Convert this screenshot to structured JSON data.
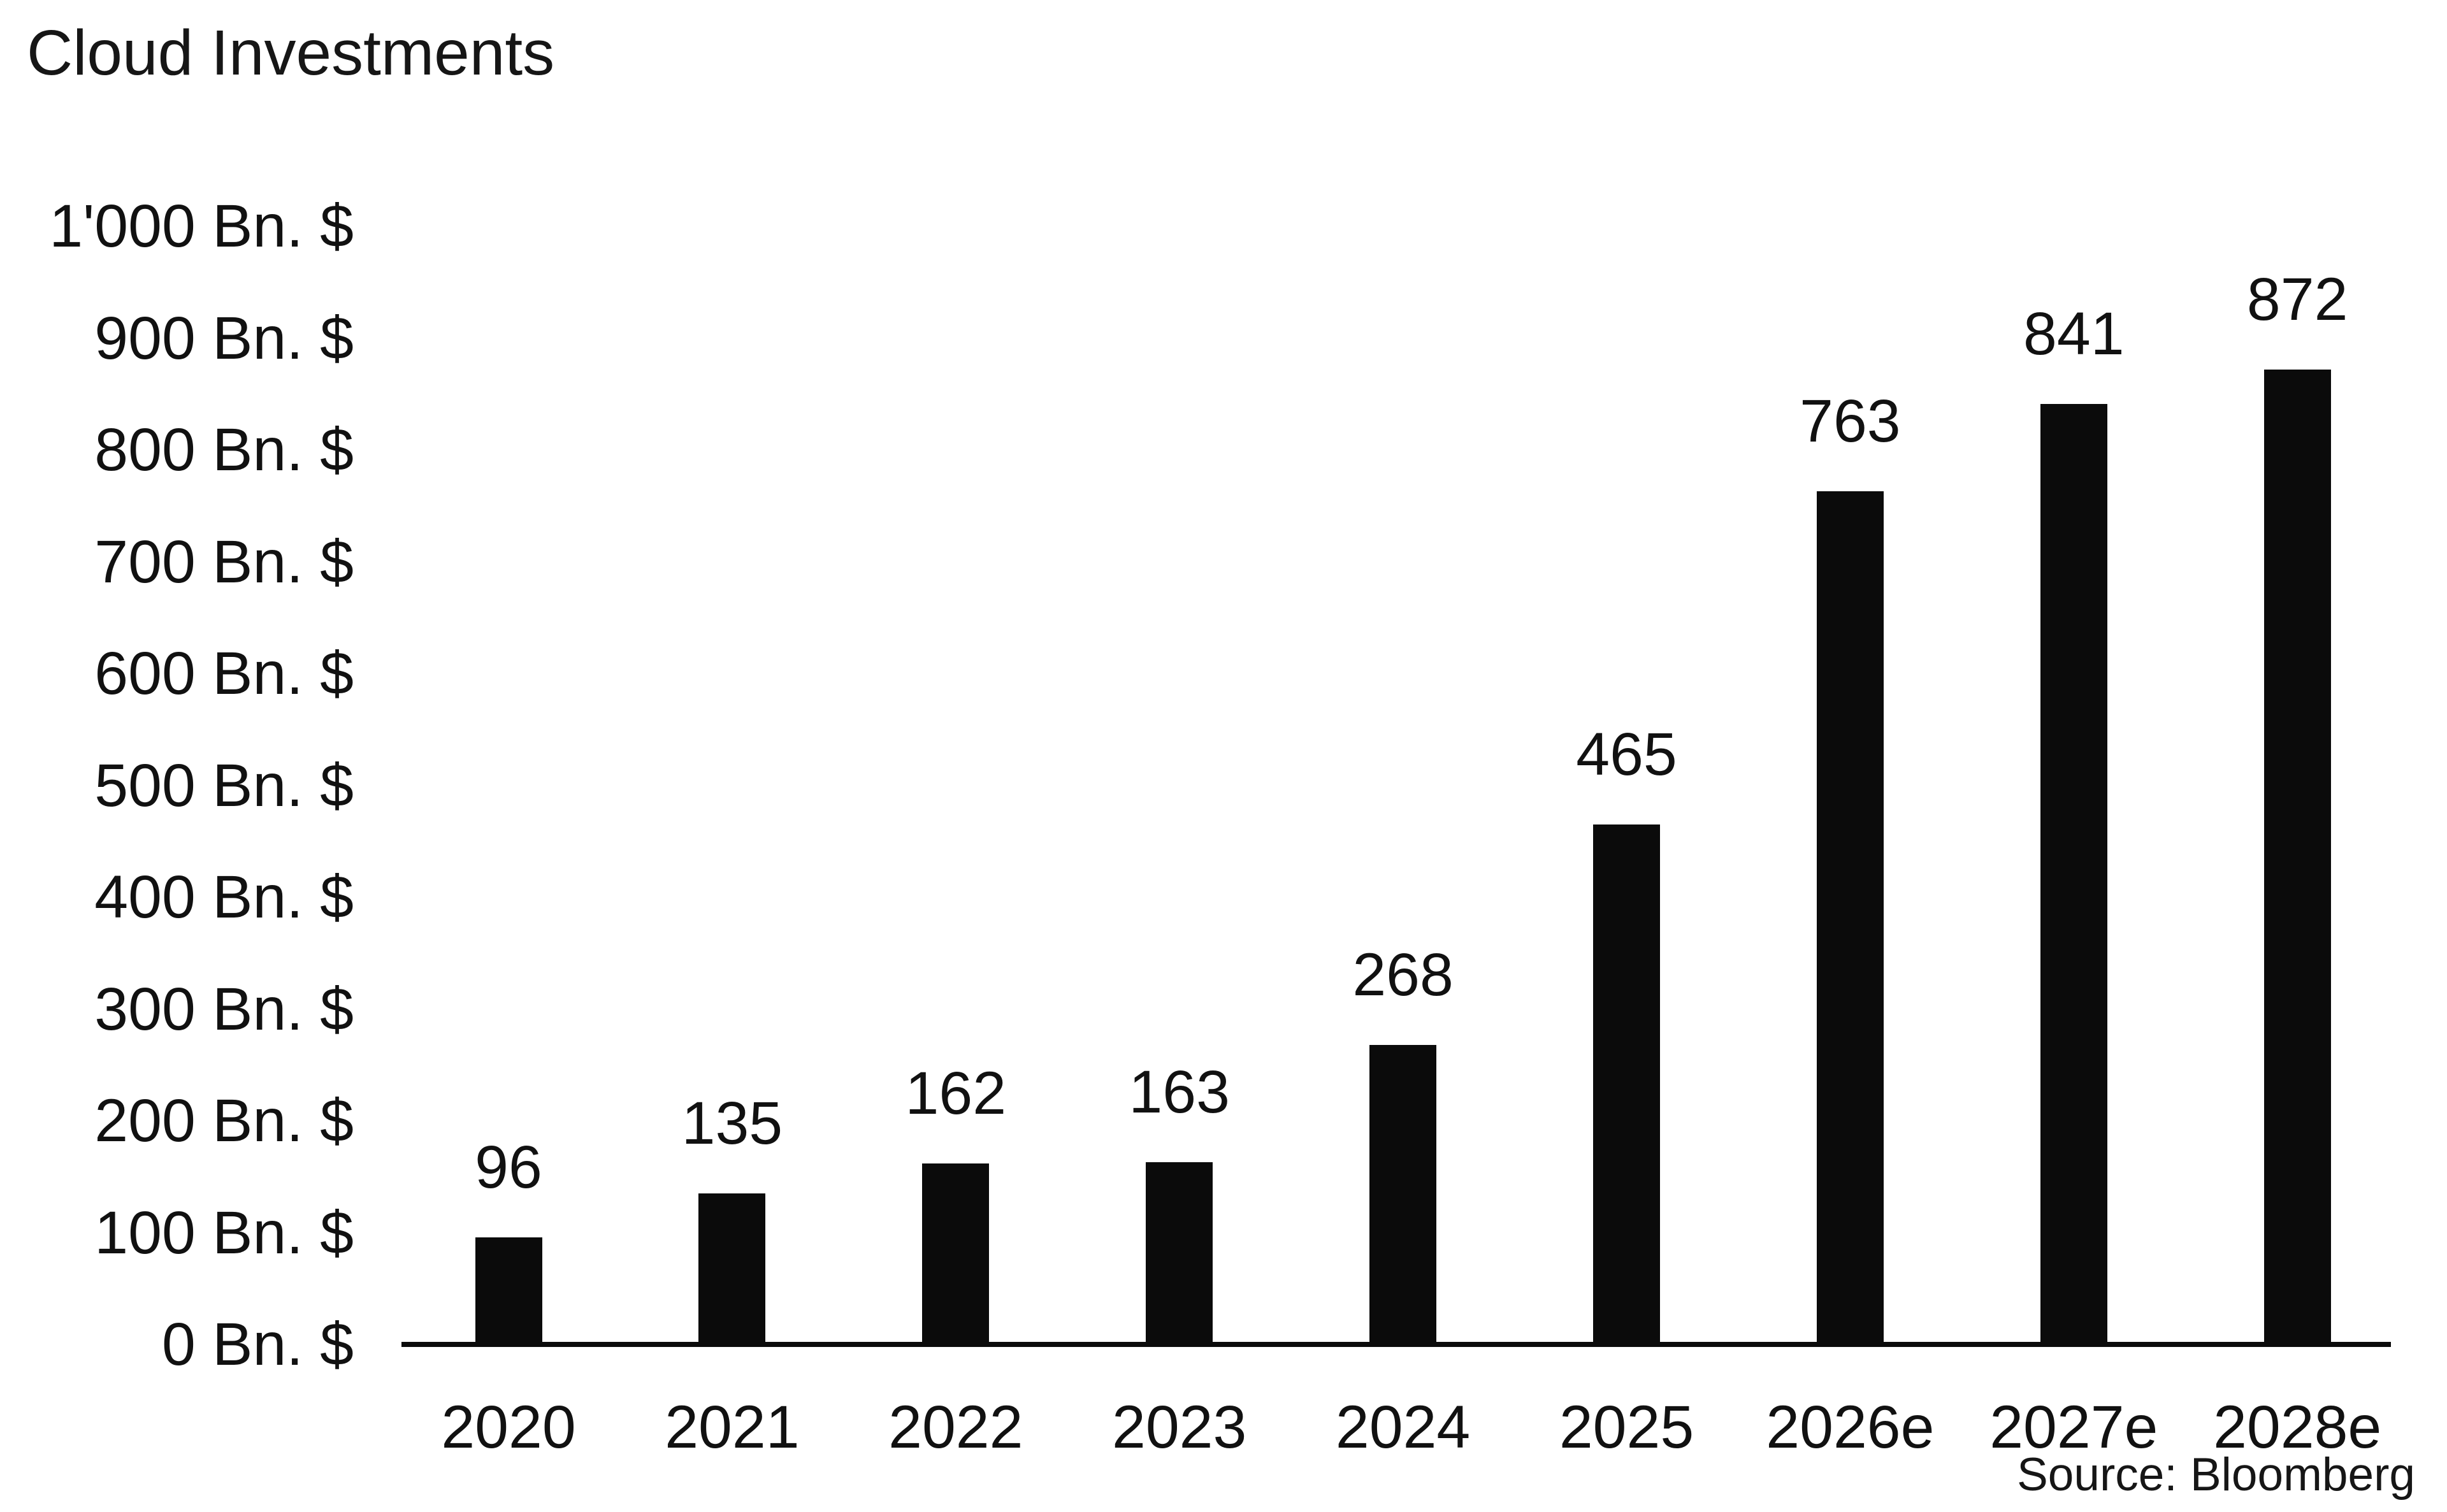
{
  "colors": {
    "background": "#ffffff",
    "bar": "#0b0b0b",
    "axis": "#0b0b0b",
    "text": "#111111"
  },
  "chart_data": {
    "type": "bar",
    "title": "Cloud Investments",
    "categories": [
      "2020",
      "2021",
      "2022",
      "2023",
      "2024",
      "2025",
      "2026e",
      "2027e",
      "2028e"
    ],
    "values": [
      96,
      135,
      162,
      163,
      268,
      465,
      763,
      841,
      872
    ],
    "value_unit": "Bn. $",
    "xlabel": "",
    "ylabel": "Bn. $",
    "ylim": [
      0,
      1000
    ],
    "y_ticks": [
      0,
      100,
      200,
      300,
      400,
      500,
      600,
      700,
      800,
      900,
      1000
    ],
    "y_tick_labels": [
      "0 Bn. $",
      "100 Bn. $",
      "200 Bn. $",
      "300 Bn. $",
      "400 Bn. $",
      "500 Bn. $",
      "600 Bn. $",
      "700 Bn. $",
      "800 Bn. $",
      "900 Bn. $",
      "1'000 Bn. $"
    ],
    "grid": false,
    "legend": false,
    "source": "Source: Bloomberg"
  }
}
